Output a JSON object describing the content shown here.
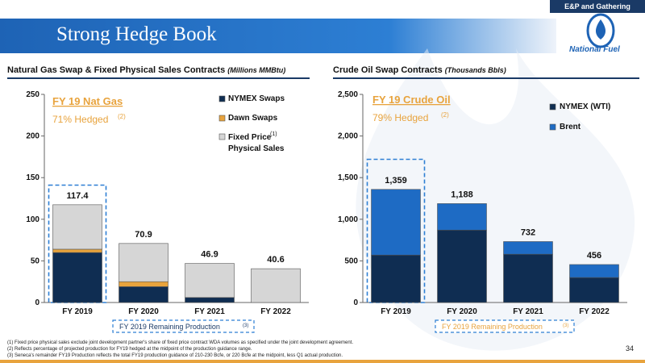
{
  "header": {
    "tag": "E&P and Gathering",
    "title": "Strong Hedge Book",
    "logo_word1": "National",
    "logo_word2": "Fuel"
  },
  "colors": {
    "nymex": "#0f2d52",
    "dawn": "#e8a33d",
    "fixed": "#d6d6d6",
    "brent": "#1e6bc4",
    "accent": "#e8a33d",
    "dashed_box": "#2d7fd4"
  },
  "left_section": {
    "title": "Natural Gas Swap & Fixed Physical Sales Contracts",
    "title_unit": "(Millions MMBtu)"
  },
  "right_section": {
    "title": "Crude Oil Swap Contracts",
    "title_unit": "(Thousands Bbls)"
  },
  "footnotes": [
    "(1)   Fixed price physical sales exclude joint development partner's share of fixed price contract WDA volumes as specified under the joint development agreement.",
    "(2)   Reflects percentage of projected production for FY19 hedged at the midpoint of the production guidance range.",
    "(3)   Seneca's remainder FY19 Production reflects the total FY19 production guidance of 210-230 Bcfe, or 220 Bcfe at the midpoint, less Q1 actual production."
  ],
  "page_number": "34",
  "chart_data": [
    {
      "type": "bar",
      "stacked": true,
      "categories": [
        "FY 2019",
        "FY 2020",
        "FY 2021",
        "FY 2022"
      ],
      "series": [
        {
          "name": "NYMEX Swaps",
          "values": [
            60,
            19,
            6,
            0
          ]
        },
        {
          "name": "Dawn Swaps",
          "values": [
            4,
            6,
            0,
            0
          ]
        },
        {
          "name": "Fixed Price Physical Sales",
          "values": [
            53.4,
            45.9,
            40.9,
            40.6
          ]
        }
      ],
      "legend_labels": [
        "NYMEX Swaps",
        "Dawn Swaps",
        "Fixed Price",
        "Physical Sales"
      ],
      "legend_sup": "(1)",
      "totals": [
        "117.4",
        "70.9",
        "46.9",
        "40.6"
      ],
      "ylim": [
        0,
        250
      ],
      "yticks": [
        "0",
        "50",
        "100",
        "150",
        "200",
        "250"
      ],
      "annotation_title": "FY 19 Nat Gas",
      "annotation_sub": "71% Hedged",
      "annotation_sup": "(2)",
      "remaining_label": "FY 2019 Remaining Production",
      "remaining_sup": "(3)",
      "remaining_value": 141
    },
    {
      "type": "bar",
      "stacked": true,
      "categories": [
        "FY 2019",
        "FY 2020",
        "FY 2021",
        "FY 2022"
      ],
      "series": [
        {
          "name": "NYMEX (WTI)",
          "values": [
            570,
            870,
            580,
            300
          ]
        },
        {
          "name": "Brent",
          "values": [
            789,
            318,
            152,
            156
          ]
        }
      ],
      "legend_labels": [
        "NYMEX (WTI)",
        "Brent"
      ],
      "totals": [
        "1,359",
        "1,188",
        "732",
        "456"
      ],
      "ylim": [
        0,
        2500
      ],
      "yticks": [
        "0",
        "500",
        "1,000",
        "1,500",
        "2,000",
        "2,500"
      ],
      "annotation_title": "FY 19 Crude Oil",
      "annotation_sub": "79% Hedged",
      "annotation_sup": "(2)",
      "remaining_label": "FY 2019 Remaining Production",
      "remaining_sup": "(3)",
      "remaining_value": 1720
    }
  ]
}
